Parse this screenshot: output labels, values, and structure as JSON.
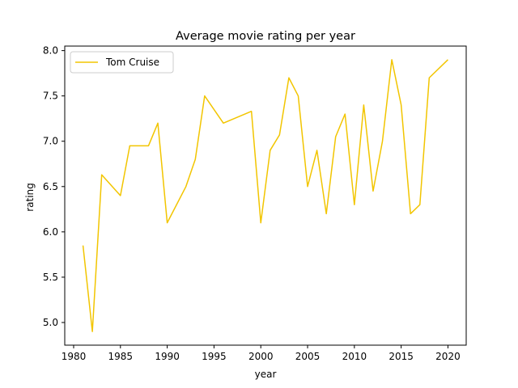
{
  "chart_data": {
    "type": "line",
    "title": "Average movie rating per year",
    "xlabel": "year",
    "ylabel": "rating",
    "xlim": [
      1979.05,
      2021.95
    ],
    "ylim": [
      4.75,
      8.05
    ],
    "xticks": [
      1980,
      1985,
      1990,
      1995,
      2000,
      2005,
      2010,
      2015,
      2020
    ],
    "yticks": [
      5.0,
      5.5,
      6.0,
      6.5,
      7.0,
      7.5,
      8.0
    ],
    "xtick_labels": [
      "1980",
      "1985",
      "1990",
      "1995",
      "2000",
      "2005",
      "2010",
      "2015",
      "2020"
    ],
    "ytick_labels": [
      "5.0",
      "5.5",
      "6.0",
      "6.5",
      "7.0",
      "7.5",
      "8.0"
    ],
    "grid": false,
    "legend_position": "top-left",
    "series": [
      {
        "name": "Tom Cruise",
        "color": "#f2c500",
        "x": [
          1981,
          1982,
          1983,
          1985,
          1986,
          1988,
          1989,
          1990,
          1992,
          1993,
          1994,
          1996,
          1999,
          2000,
          2001,
          2002,
          2003,
          2004,
          2005,
          2006,
          2007,
          2008,
          2009,
          2010,
          2011,
          2012,
          2013,
          2014,
          2015,
          2016,
          2017,
          2018,
          2020
        ],
        "y": [
          5.85,
          4.9,
          6.63,
          6.4,
          6.95,
          6.95,
          7.2,
          6.1,
          6.5,
          6.8,
          7.5,
          7.2,
          7.33,
          6.1,
          6.9,
          7.07,
          7.7,
          7.5,
          6.5,
          6.9,
          6.2,
          7.05,
          7.3,
          6.3,
          7.4,
          6.45,
          7.0,
          7.9,
          7.4,
          6.2,
          6.3,
          7.7,
          7.9
        ]
      }
    ]
  }
}
